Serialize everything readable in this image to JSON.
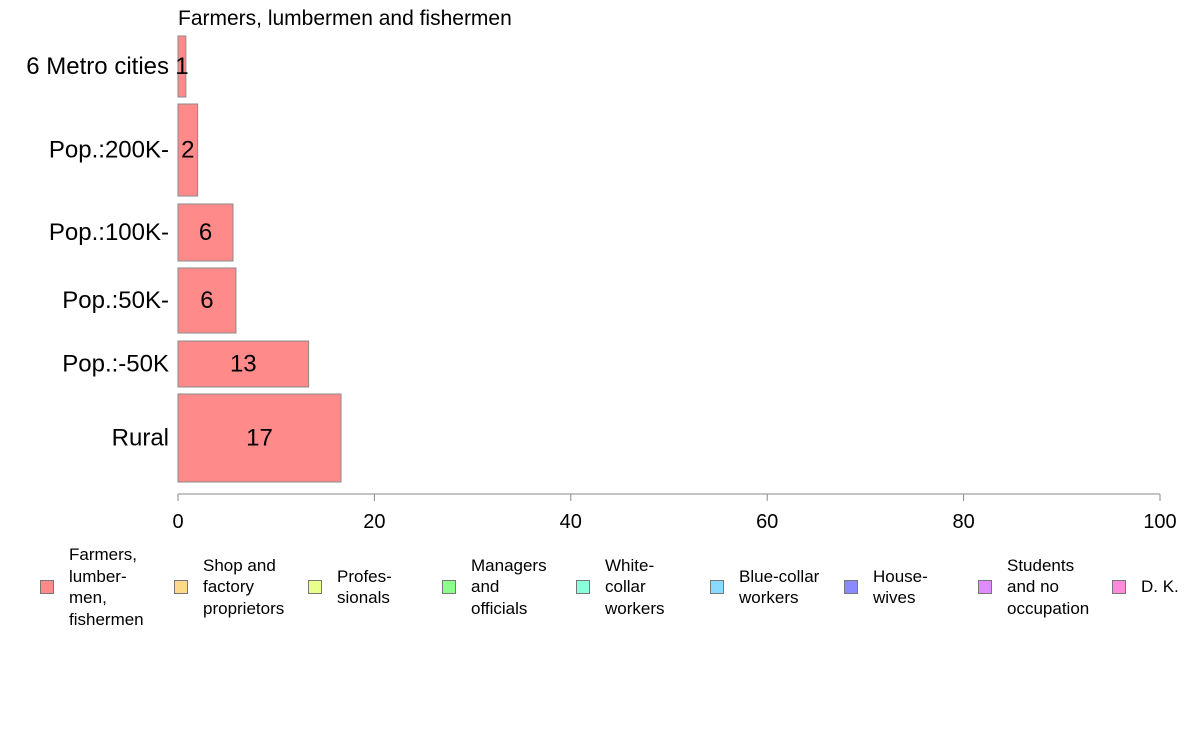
{
  "chart_data": {
    "type": "bar",
    "orientation": "horizontal",
    "title": "Farmers, lumbermen and fishermen",
    "categories": [
      "6 Metro cities",
      "Pop.:200K-",
      "Pop.:100K-",
      "Pop.:50K-",
      "Pop.:-50K",
      "Rural"
    ],
    "values": [
      1,
      2,
      6,
      6,
      13,
      17
    ],
    "bar_fill_values": [
      0.8,
      2.0,
      5.6,
      5.9,
      13.3,
      16.6
    ],
    "data_labels": [
      "1",
      "2",
      "6",
      "6",
      "13",
      "17"
    ],
    "bar_color": "#ff8a8a",
    "xlim": [
      0,
      100
    ],
    "xticks": [
      0,
      20,
      40,
      60,
      80,
      100
    ],
    "xtick_labels": [
      "0",
      "20",
      "40",
      "60",
      "80",
      "100"
    ],
    "xlabel": "",
    "ylabel": "",
    "grid": false,
    "legend": {
      "placement": "bottom",
      "items": [
        {
          "label": "Farmers,\nlumber-\nmen,\nfishermen",
          "color": "#ff8a8a"
        },
        {
          "label": "Shop and\nfactory\nproprietors",
          "color": "#ffd98a"
        },
        {
          "label": "Profes-\nsionals",
          "color": "#e8ff8a"
        },
        {
          "label": "Managers\nand\nofficials",
          "color": "#8aff8a"
        },
        {
          "label": "White-\ncollar\nworkers",
          "color": "#8affd9"
        },
        {
          "label": "Blue-collar\nworkers",
          "color": "#8ad9ff"
        },
        {
          "label": "House-\nwives",
          "color": "#8a8aff"
        },
        {
          "label": "Students\nand no\noccupation",
          "color": "#e08aff"
        },
        {
          "label": "D. K.",
          "color": "#ff8ad9"
        }
      ]
    }
  }
}
